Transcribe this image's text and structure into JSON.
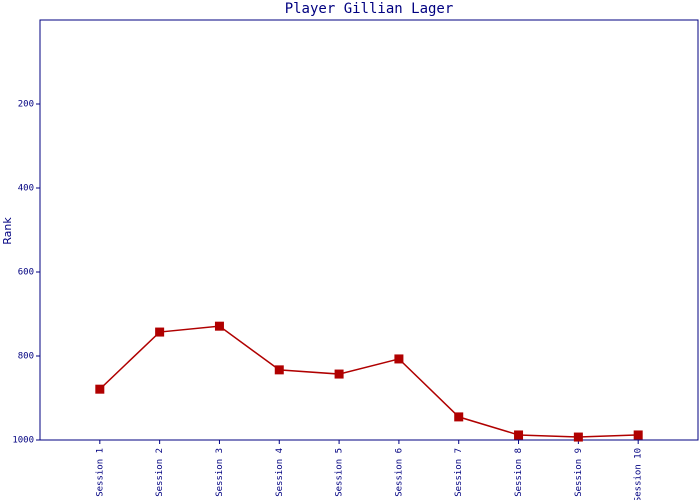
{
  "chart_data": {
    "type": "line",
    "title": "Player Gillian Lager",
    "y_label": "Rank",
    "categories": [
      "Session 1",
      "Session 2",
      "Session 3",
      "Session 4",
      "Session 5",
      "Session 6",
      "Session 7",
      "Session 8",
      "Session 9",
      "Session 10"
    ],
    "series": [
      {
        "name": "Rank",
        "color": "#b00000",
        "values": [
          879,
          743,
          729,
          833,
          843,
          807,
          945,
          988,
          993,
          988
        ]
      }
    ],
    "ylim": [
      0,
      1000
    ],
    "y_inverted": true,
    "yticks": [
      200,
      400,
      600,
      800,
      1000
    ],
    "grid": false,
    "axis_color": "#000080"
  }
}
